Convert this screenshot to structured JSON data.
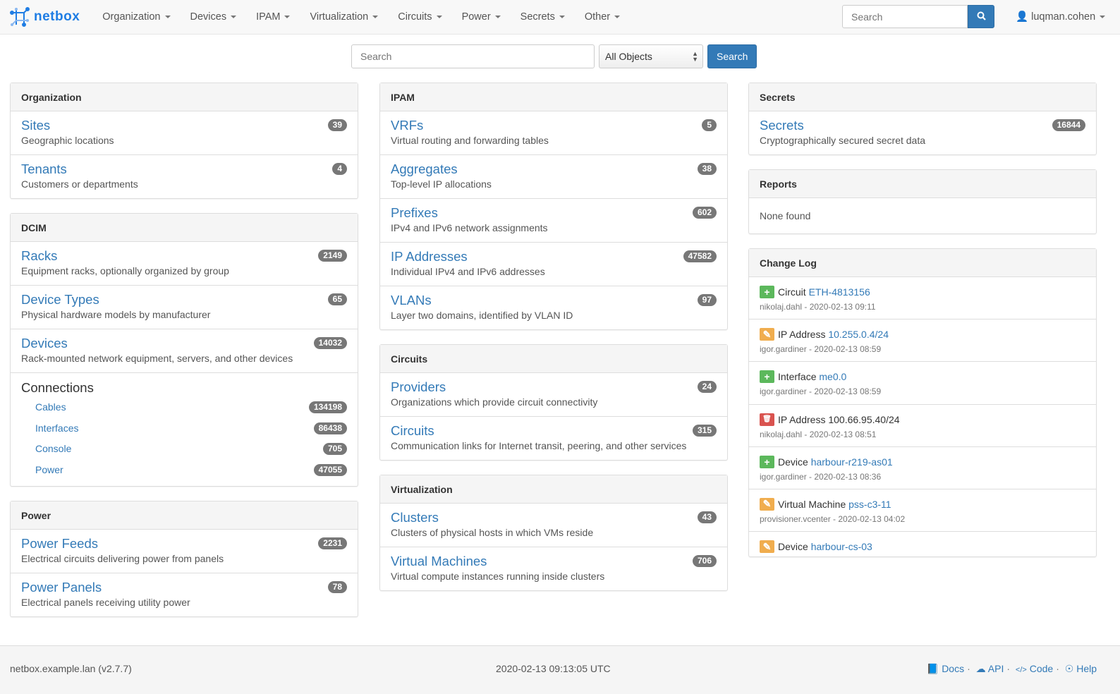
{
  "nav": {
    "brand": "netbox",
    "menus": [
      "Organization",
      "Devices",
      "IPAM",
      "Virtualization",
      "Circuits",
      "Power",
      "Secrets",
      "Other"
    ],
    "search_placeholder": "Search",
    "user": "luqman.cohen"
  },
  "search": {
    "placeholder": "Search",
    "scope": "All Objects",
    "button": "Search"
  },
  "columns": [
    [
      {
        "title": "Organization",
        "items": [
          {
            "label": "Sites",
            "desc": "Geographic locations",
            "count": "39"
          },
          {
            "label": "Tenants",
            "desc": "Customers or departments",
            "count": "4"
          }
        ]
      },
      {
        "title": "DCIM",
        "items": [
          {
            "label": "Racks",
            "desc": "Equipment racks, optionally organized by group",
            "count": "2149"
          },
          {
            "label": "Device Types",
            "desc": "Physical hardware models by manufacturer",
            "count": "65"
          },
          {
            "label": "Devices",
            "desc": "Rack-mounted network equipment, servers, and other devices",
            "count": "14032"
          }
        ],
        "connections": {
          "title": "Connections",
          "items": [
            {
              "label": "Cables",
              "count": "134198"
            },
            {
              "label": "Interfaces",
              "count": "86438"
            },
            {
              "label": "Console",
              "count": "705"
            },
            {
              "label": "Power",
              "count": "47055"
            }
          ]
        }
      },
      {
        "title": "Power",
        "items": [
          {
            "label": "Power Feeds",
            "desc": "Electrical circuits delivering power from panels",
            "count": "2231"
          },
          {
            "label": "Power Panels",
            "desc": "Electrical panels receiving utility power",
            "count": "78"
          }
        ]
      }
    ],
    [
      {
        "title": "IPAM",
        "items": [
          {
            "label": "VRFs",
            "desc": "Virtual routing and forwarding tables",
            "count": "5"
          },
          {
            "label": "Aggregates",
            "desc": "Top-level IP allocations",
            "count": "38"
          },
          {
            "label": "Prefixes",
            "desc": "IPv4 and IPv6 network assignments",
            "count": "602"
          },
          {
            "label": "IP Addresses",
            "desc": "Individual IPv4 and IPv6 addresses",
            "count": "47582"
          },
          {
            "label": "VLANs",
            "desc": "Layer two domains, identified by VLAN ID",
            "count": "97"
          }
        ]
      },
      {
        "title": "Circuits",
        "items": [
          {
            "label": "Providers",
            "desc": "Organizations which provide circuit connectivity",
            "count": "24"
          },
          {
            "label": "Circuits",
            "desc": "Communication links for Internet transit, peering, and other services",
            "count": "315"
          }
        ]
      },
      {
        "title": "Virtualization",
        "items": [
          {
            "label": "Clusters",
            "desc": "Clusters of physical hosts in which VMs reside",
            "count": "43"
          },
          {
            "label": "Virtual Machines",
            "desc": "Virtual compute instances running inside clusters",
            "count": "706"
          }
        ]
      }
    ],
    [
      {
        "title": "Secrets",
        "items": [
          {
            "label": "Secrets",
            "desc": "Cryptographically secured secret data",
            "count": "16844"
          }
        ]
      },
      {
        "title": "Reports",
        "none": "None found"
      },
      {
        "title": "Change Log",
        "changelog": [
          {
            "action": "create",
            "type": "Circuit",
            "object": "ETH-4813156",
            "linked": true,
            "meta": "nikolaj.dahl - 2020-02-13 09:11"
          },
          {
            "action": "update",
            "type": "IP Address",
            "object": "10.255.0.4/24",
            "linked": true,
            "meta": "igor.gardiner - 2020-02-13 08:59"
          },
          {
            "action": "create",
            "type": "Interface",
            "object": "me0.0",
            "linked": true,
            "meta": "igor.gardiner - 2020-02-13 08:59"
          },
          {
            "action": "delete",
            "type": "IP Address",
            "object": "100.66.95.40/24",
            "linked": false,
            "meta": "nikolaj.dahl - 2020-02-13 08:51"
          },
          {
            "action": "create",
            "type": "Device",
            "object": "harbour-r219-as01",
            "linked": true,
            "meta": "igor.gardiner - 2020-02-13 08:36"
          },
          {
            "action": "update",
            "type": "Virtual Machine",
            "object": "pss-c3-11",
            "linked": true,
            "meta": "provisioner.vcenter - 2020-02-13 04:02"
          },
          {
            "action": "update",
            "type": "Device",
            "object": "harbour-cs-03",
            "linked": true,
            "meta": ""
          }
        ]
      }
    ]
  ],
  "action_colors": {
    "create": "#5cb85c",
    "update": "#f0ad4e",
    "delete": "#d9534f"
  },
  "footer": {
    "host": "netbox.example.lan (v2.7.7)",
    "time": "2020-02-13 09:13:05 UTC",
    "links": [
      "Docs",
      "API",
      "Code",
      "Help"
    ]
  }
}
